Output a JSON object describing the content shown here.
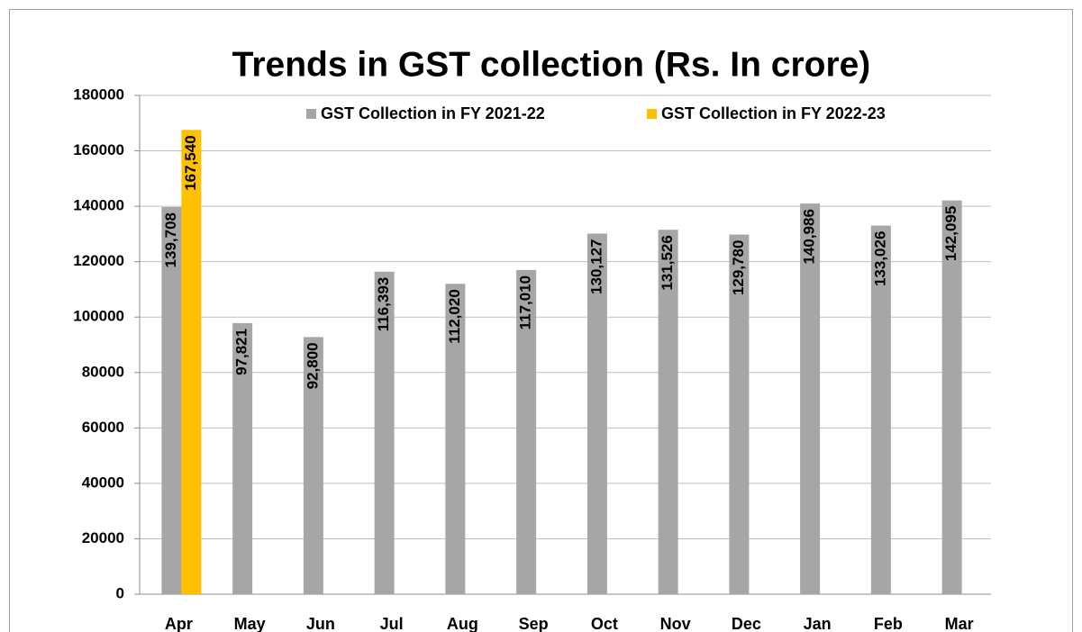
{
  "chart_data": {
    "type": "bar",
    "title": "Trends in GST collection (Rs. In crore)",
    "categories": [
      "Apr",
      "May",
      "Jun",
      "Jul",
      "Aug",
      "Sep",
      "Oct",
      "Nov",
      "Dec",
      "Jan",
      "Feb",
      "Mar"
    ],
    "series": [
      {
        "name": "GST Collection in FY 2021-22",
        "color": "#a6a6a6",
        "values": [
          139708,
          97821,
          92800,
          116393,
          112020,
          117010,
          130127,
          131526,
          129780,
          140986,
          133026,
          142095
        ],
        "value_labels": [
          "139,708",
          "97,821",
          "92,800",
          "116,393",
          "112,020",
          "117,010",
          "130,127",
          "131,526",
          "129,780",
          "140,986",
          "133,026",
          "142,095"
        ]
      },
      {
        "name": "GST Collection in FY 2022-23",
        "color": "#ffc000",
        "values": [
          167540,
          null,
          null,
          null,
          null,
          null,
          null,
          null,
          null,
          null,
          null,
          null
        ],
        "value_labels": [
          "167,540",
          null,
          null,
          null,
          null,
          null,
          null,
          null,
          null,
          null,
          null,
          null
        ]
      }
    ],
    "ylim": [
      0,
      180000
    ],
    "yticks": [
      0,
      20000,
      40000,
      60000,
      80000,
      100000,
      120000,
      140000,
      160000,
      180000
    ],
    "grid": true,
    "legend": "top"
  }
}
